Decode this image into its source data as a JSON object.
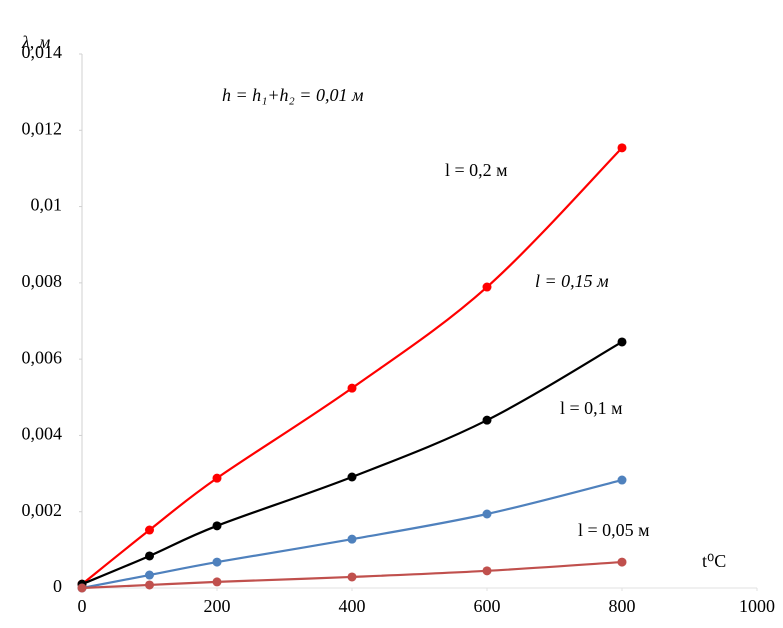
{
  "chart_data": {
    "type": "line",
    "y_label": "λ, м",
    "x_label": "t⁰C",
    "annotation": "h = h₁+h₂ = 0,01 м",
    "x": [
      0,
      100,
      200,
      400,
      600,
      800
    ],
    "series": [
      {
        "name": "l = 0,2 м",
        "color": "#ff0000",
        "values": [
          0.0001,
          0.00152,
          0.00288,
          0.00524,
          0.00789,
          0.01154
        ]
      },
      {
        "name": "l = 0,15 м",
        "color": "#000000",
        "values": [
          0.0001,
          0.00084,
          0.00163,
          0.00291,
          0.0044,
          0.00645
        ]
      },
      {
        "name": "l = 0,1 м",
        "color": "#4f81bd",
        "values": [
          0,
          0.00034,
          0.00068,
          0.00128,
          0.00194,
          0.00283
        ]
      },
      {
        "name": "l = 0,05 м",
        "color": "#c0504d",
        "values": [
          0,
          8e-05,
          0.00016,
          0.00029,
          0.00045,
          0.00068
        ]
      }
    ],
    "xlim": [
      0,
      1000
    ],
    "xticks": [
      0,
      200,
      400,
      600,
      800,
      1000
    ],
    "ylim": [
      0,
      0.014
    ],
    "yticks": [
      0,
      {
        "value": 0.002,
        "label": "0,002"
      },
      {
        "value": 0.004,
        "label": "0,004"
      },
      {
        "value": 0.006,
        "label": "0,006"
      },
      {
        "value": 0.008,
        "label": "0,008"
      },
      {
        "value": 0.01,
        "label": "0,01"
      },
      {
        "value": 0.012,
        "label": "0,012"
      },
      {
        "value": 0.014,
        "label": "0,014"
      }
    ]
  }
}
